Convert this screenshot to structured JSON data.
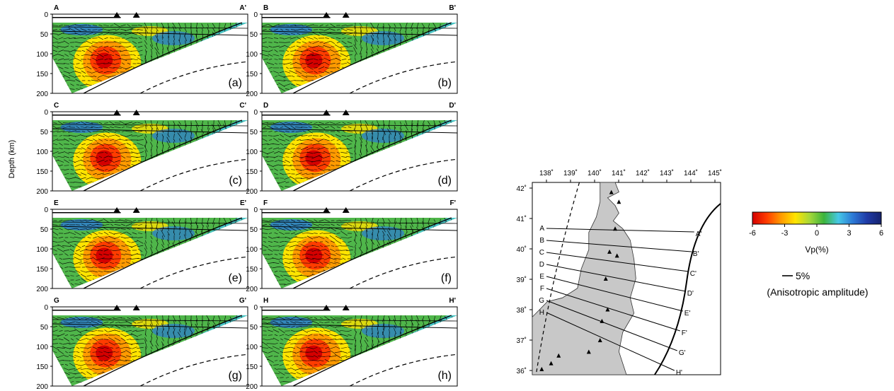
{
  "y_axis": {
    "label": "Depth (km)",
    "ticks": [
      "0",
      "50",
      "100",
      "150",
      "200"
    ]
  },
  "panels": [
    {
      "id": "a",
      "label": "(a)",
      "left": "A",
      "right": "A'"
    },
    {
      "id": "b",
      "label": "(b)",
      "left": "B",
      "right": "B'"
    },
    {
      "id": "c",
      "label": "(c)",
      "left": "C",
      "right": "C'"
    },
    {
      "id": "d",
      "label": "(d)",
      "left": "D",
      "right": "D'"
    },
    {
      "id": "e",
      "label": "(e)",
      "left": "E",
      "right": "E'"
    },
    {
      "id": "f",
      "label": "(f)",
      "left": "F",
      "right": "F'"
    },
    {
      "id": "g",
      "label": "(g)",
      "left": "G",
      "right": "G'"
    },
    {
      "id": "h",
      "label": "(h)",
      "left": "H",
      "right": "H'"
    }
  ],
  "map": {
    "lon_ticks": [
      "138˚",
      "139˚",
      "140˚",
      "141˚",
      "142˚",
      "143˚",
      "144˚",
      "145˚"
    ],
    "lat_ticks": [
      "42˚",
      "41˚",
      "40˚",
      "39˚",
      "38˚",
      "37˚",
      "36˚"
    ],
    "lines": [
      {
        "start": "A",
        "end": "A'"
      },
      {
        "start": "B",
        "end": "B'"
      },
      {
        "start": "C",
        "end": "C'"
      },
      {
        "start": "D",
        "end": "D'"
      },
      {
        "start": "E",
        "end": "E'"
      },
      {
        "start": "F",
        "end": "F'"
      },
      {
        "start": "G",
        "end": "G'"
      },
      {
        "start": "H",
        "end": "H'"
      }
    ]
  },
  "colorbar": {
    "ticks": [
      "-6",
      "-3",
      "0",
      "3",
      "6"
    ],
    "label": "Vp(%)",
    "stops": [
      "#d40000",
      "#ff3c00",
      "#ff9a00",
      "#ffe400",
      "#a6d83a",
      "#3cb43c",
      "#46c8e6",
      "#2c7ad6",
      "#1f3aa6",
      "#15226e"
    ]
  },
  "scale": {
    "value": "5%",
    "caption": "(Anisotropic amplitude)"
  }
}
